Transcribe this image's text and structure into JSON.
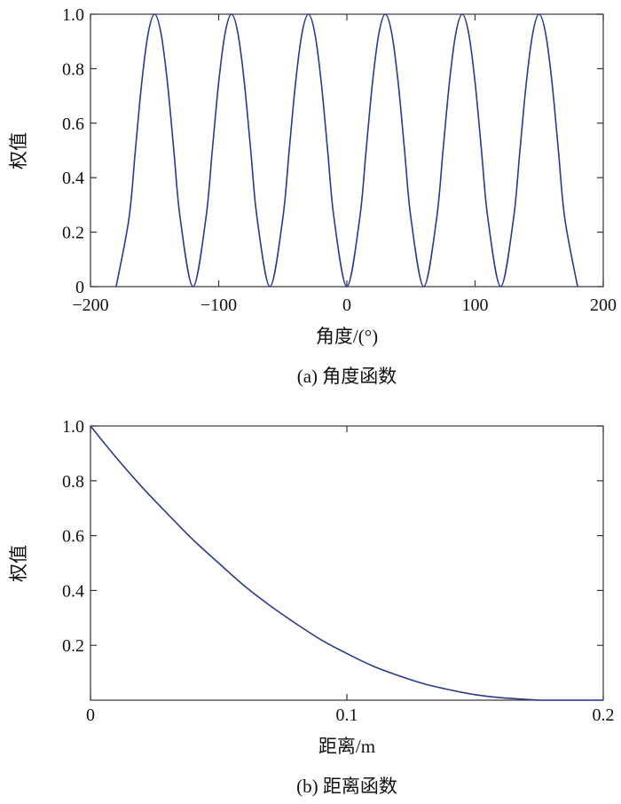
{
  "chart_data": [
    {
      "type": "line",
      "caption": "(a) 角度函数",
      "xlabel": "角度/(°)",
      "ylabel": "权值",
      "xlim": [
        -200,
        200
      ],
      "ylim": [
        0,
        1
      ],
      "xticks": [
        -200,
        -100,
        0,
        100,
        200
      ],
      "xtick_labels": [
        "−200",
        "−100",
        "0",
        "100",
        "200"
      ],
      "yticks": [
        0,
        0.2,
        0.4,
        0.6,
        0.8,
        1.0
      ],
      "ytick_labels": [
        "0",
        "0.2",
        "0.4",
        "0.6",
        "0.8",
        "1.0"
      ],
      "grid": false,
      "line_color": "#2b3990",
      "series": [
        {
          "x": [
            -180,
            -170,
            -165,
            -160,
            -155,
            -150,
            -145,
            -140,
            -135,
            -130,
            -120,
            -110,
            -105,
            -100,
            -95,
            -90,
            -85,
            -80,
            -75,
            -70,
            -60,
            -50,
            -45,
            -40,
            -35,
            -30,
            -25,
            -20,
            -15,
            -10,
            0,
            10,
            15,
            20,
            25,
            30,
            35,
            40,
            45,
            50,
            60,
            70,
            75,
            80,
            85,
            90,
            95,
            100,
            105,
            110,
            120,
            130,
            135,
            140,
            145,
            150,
            155,
            160,
            165,
            170,
            180
          ],
          "y": [
            0,
            0.25,
            0.5,
            0.75,
            0.93,
            1.0,
            0.93,
            0.75,
            0.5,
            0.25,
            0,
            0.25,
            0.5,
            0.75,
            0.93,
            1.0,
            0.93,
            0.75,
            0.5,
            0.25,
            0,
            0.25,
            0.5,
            0.75,
            0.93,
            1.0,
            0.93,
            0.75,
            0.5,
            0.25,
            0,
            0.25,
            0.5,
            0.75,
            0.93,
            1.0,
            0.93,
            0.75,
            0.5,
            0.25,
            0,
            0.25,
            0.5,
            0.75,
            0.93,
            1.0,
            0.93,
            0.75,
            0.5,
            0.25,
            0,
            0.25,
            0.5,
            0.75,
            0.93,
            1.0,
            0.93,
            0.75,
            0.5,
            0.25,
            0
          ]
        }
      ]
    },
    {
      "type": "line",
      "caption": "(b) 距离函数",
      "xlabel": "距离/m",
      "ylabel": "权值",
      "xlim": [
        0,
        0.2
      ],
      "ylim": [
        0,
        1
      ],
      "xticks": [
        0,
        0.1,
        0.2
      ],
      "xtick_labels": [
        "0",
        "0.1",
        "0.2"
      ],
      "yticks": [
        0.2,
        0.4,
        0.6,
        0.8,
        1.0
      ],
      "ytick_labels": [
        "0.2",
        "0.4",
        "0.6",
        "0.8",
        "1.0"
      ],
      "grid": false,
      "line_color": "#2b3990",
      "series": [
        {
          "x": [
            0,
            0.01,
            0.02,
            0.03,
            0.04,
            0.05,
            0.06,
            0.07,
            0.08,
            0.09,
            0.1,
            0.11,
            0.12,
            0.13,
            0.14,
            0.15,
            0.16,
            0.17,
            0.175,
            0.18,
            0.19,
            0.2
          ],
          "y": [
            1.0,
            0.885,
            0.778,
            0.68,
            0.585,
            0.5,
            0.417,
            0.345,
            0.28,
            0.22,
            0.17,
            0.125,
            0.09,
            0.06,
            0.038,
            0.02,
            0.009,
            0.003,
            0.0,
            0.0,
            0.0,
            0.0
          ]
        }
      ]
    }
  ]
}
